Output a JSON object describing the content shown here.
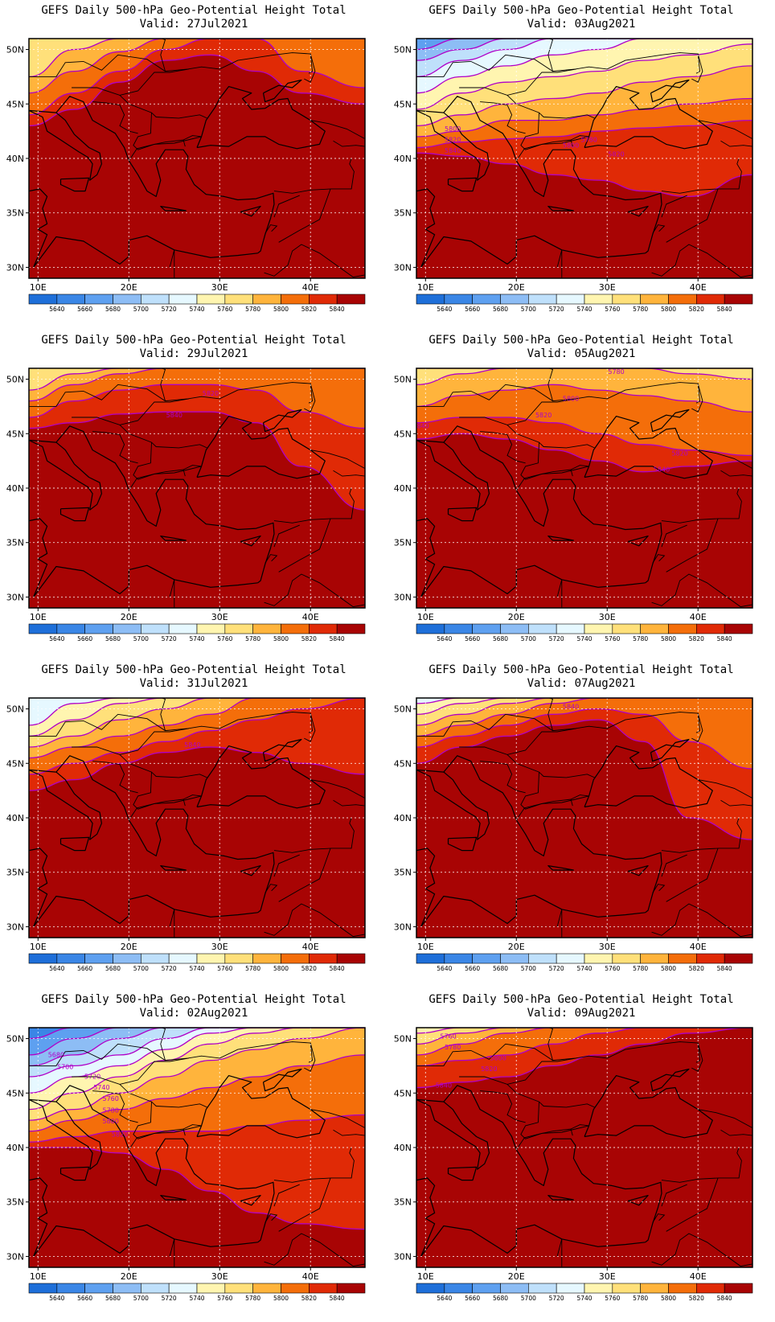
{
  "figure": {
    "title_line": "GEFS Daily 500-hPa Geo-Potential Height Total",
    "valid_prefix": "Valid: ",
    "axes": {
      "lon_ticks": [
        "10E",
        "20E",
        "30E",
        "40E"
      ],
      "lat_ticks": [
        "50N",
        "45N",
        "40N",
        "35N",
        "30N"
      ],
      "lon_range": [
        9,
        46
      ],
      "lat_range": [
        29,
        51
      ]
    },
    "colorbar": {
      "labels": [
        "5640",
        "5660",
        "5680",
        "5700",
        "5720",
        "5740",
        "5760",
        "5780",
        "5800",
        "5820",
        "5840"
      ],
      "colors": [
        "#1e6fd9",
        "#3a86e6",
        "#5ea0f0",
        "#8dbdf5",
        "#bfe0fb",
        "#e6f8ff",
        "#fff5b0",
        "#ffe07a",
        "#ffb43c",
        "#f46e0a",
        "#e02a06",
        "#a80404"
      ]
    },
    "contour_color": "#b000c8",
    "panels": [
      {
        "valid": "27Jul2021",
        "labels": []
      },
      {
        "valid": "03Aug2021",
        "labels": [
          "5780",
          "5800",
          "5800",
          "5820",
          "5840",
          "5820"
        ]
      },
      {
        "valid": "29Jul2021",
        "labels": [
          "5820",
          "5840"
        ]
      },
      {
        "valid": "05Aug2021",
        "labels": [
          "5780",
          "5800",
          "5820",
          "5840",
          "5820",
          "5840"
        ]
      },
      {
        "valid": "31Jul2021",
        "labels": [
          "5840"
        ]
      },
      {
        "valid": "07Aug2021",
        "labels": [
          "5840"
        ]
      },
      {
        "valid": "02Aug2021",
        "labels": [
          "5680",
          "5700",
          "5720",
          "5740",
          "5760",
          "5780",
          "5800",
          "5820"
        ]
      },
      {
        "valid": "09Aug2021",
        "labels": [
          "5760",
          "5780",
          "5800",
          "5820",
          "5840"
        ]
      }
    ]
  }
}
